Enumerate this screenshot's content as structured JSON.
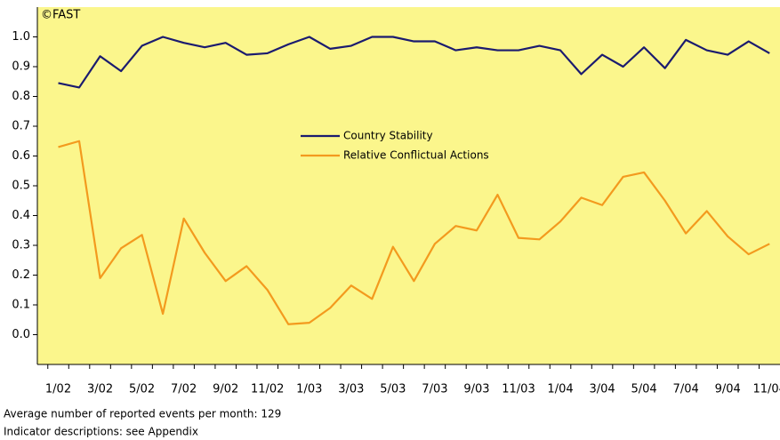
{
  "chart_data": {
    "type": "line",
    "source": "©FAST",
    "categories": [
      "1/02",
      null,
      "3/02",
      null,
      "5/02",
      null,
      "7/02",
      null,
      "9/02",
      null,
      "11/02",
      null,
      "1/03",
      null,
      "3/03",
      null,
      "5/03",
      null,
      "7/03",
      null,
      "9/03",
      null,
      "11/03",
      null,
      "1/04",
      null,
      "3/04",
      null,
      "5/04",
      null,
      "7/04",
      null,
      "9/04",
      null,
      "11/04"
    ],
    "series": [
      {
        "name": "Country Stability",
        "color": "#1b1b6f",
        "values": [
          0.845,
          0.83,
          0.935,
          0.885,
          0.97,
          1.0,
          0.98,
          0.965,
          0.98,
          0.94,
          0.945,
          0.975,
          1.0,
          0.96,
          0.97,
          1.0,
          1.0,
          0.985,
          0.985,
          0.955,
          0.965,
          0.955,
          0.955,
          0.97,
          0.955,
          0.875,
          0.94,
          0.9,
          0.965,
          0.895,
          0.99,
          0.955,
          0.94,
          0.985,
          0.945
        ]
      },
      {
        "name": "Relative Conflictual Actions",
        "color": "#f39a1e",
        "values": [
          0.63,
          0.65,
          0.19,
          0.29,
          0.335,
          0.07,
          0.39,
          0.275,
          0.18,
          0.23,
          0.15,
          0.035,
          0.04,
          0.09,
          0.165,
          0.12,
          0.295,
          0.18,
          0.305,
          0.365,
          0.35,
          0.47,
          0.325,
          0.32,
          0.38,
          0.46,
          0.435,
          0.53,
          0.545,
          0.45,
          0.34,
          0.415,
          0.33,
          0.27,
          0.305
        ]
      }
    ],
    "ylim": [
      -0.1,
      1.1
    ],
    "yticks": [
      {
        "value": 0,
        "label": "0.0"
      },
      0.1,
      0.2,
      0.3,
      0.4,
      0.5,
      0.6,
      0.7,
      0.8,
      0.9,
      {
        "value": 1,
        "label": "1.0"
      }
    ],
    "legend": "center",
    "background": "#fbf68c",
    "notes": [
      "Average number of reported events per month: 129",
      "Indicator descriptions: see Appendix"
    ]
  }
}
